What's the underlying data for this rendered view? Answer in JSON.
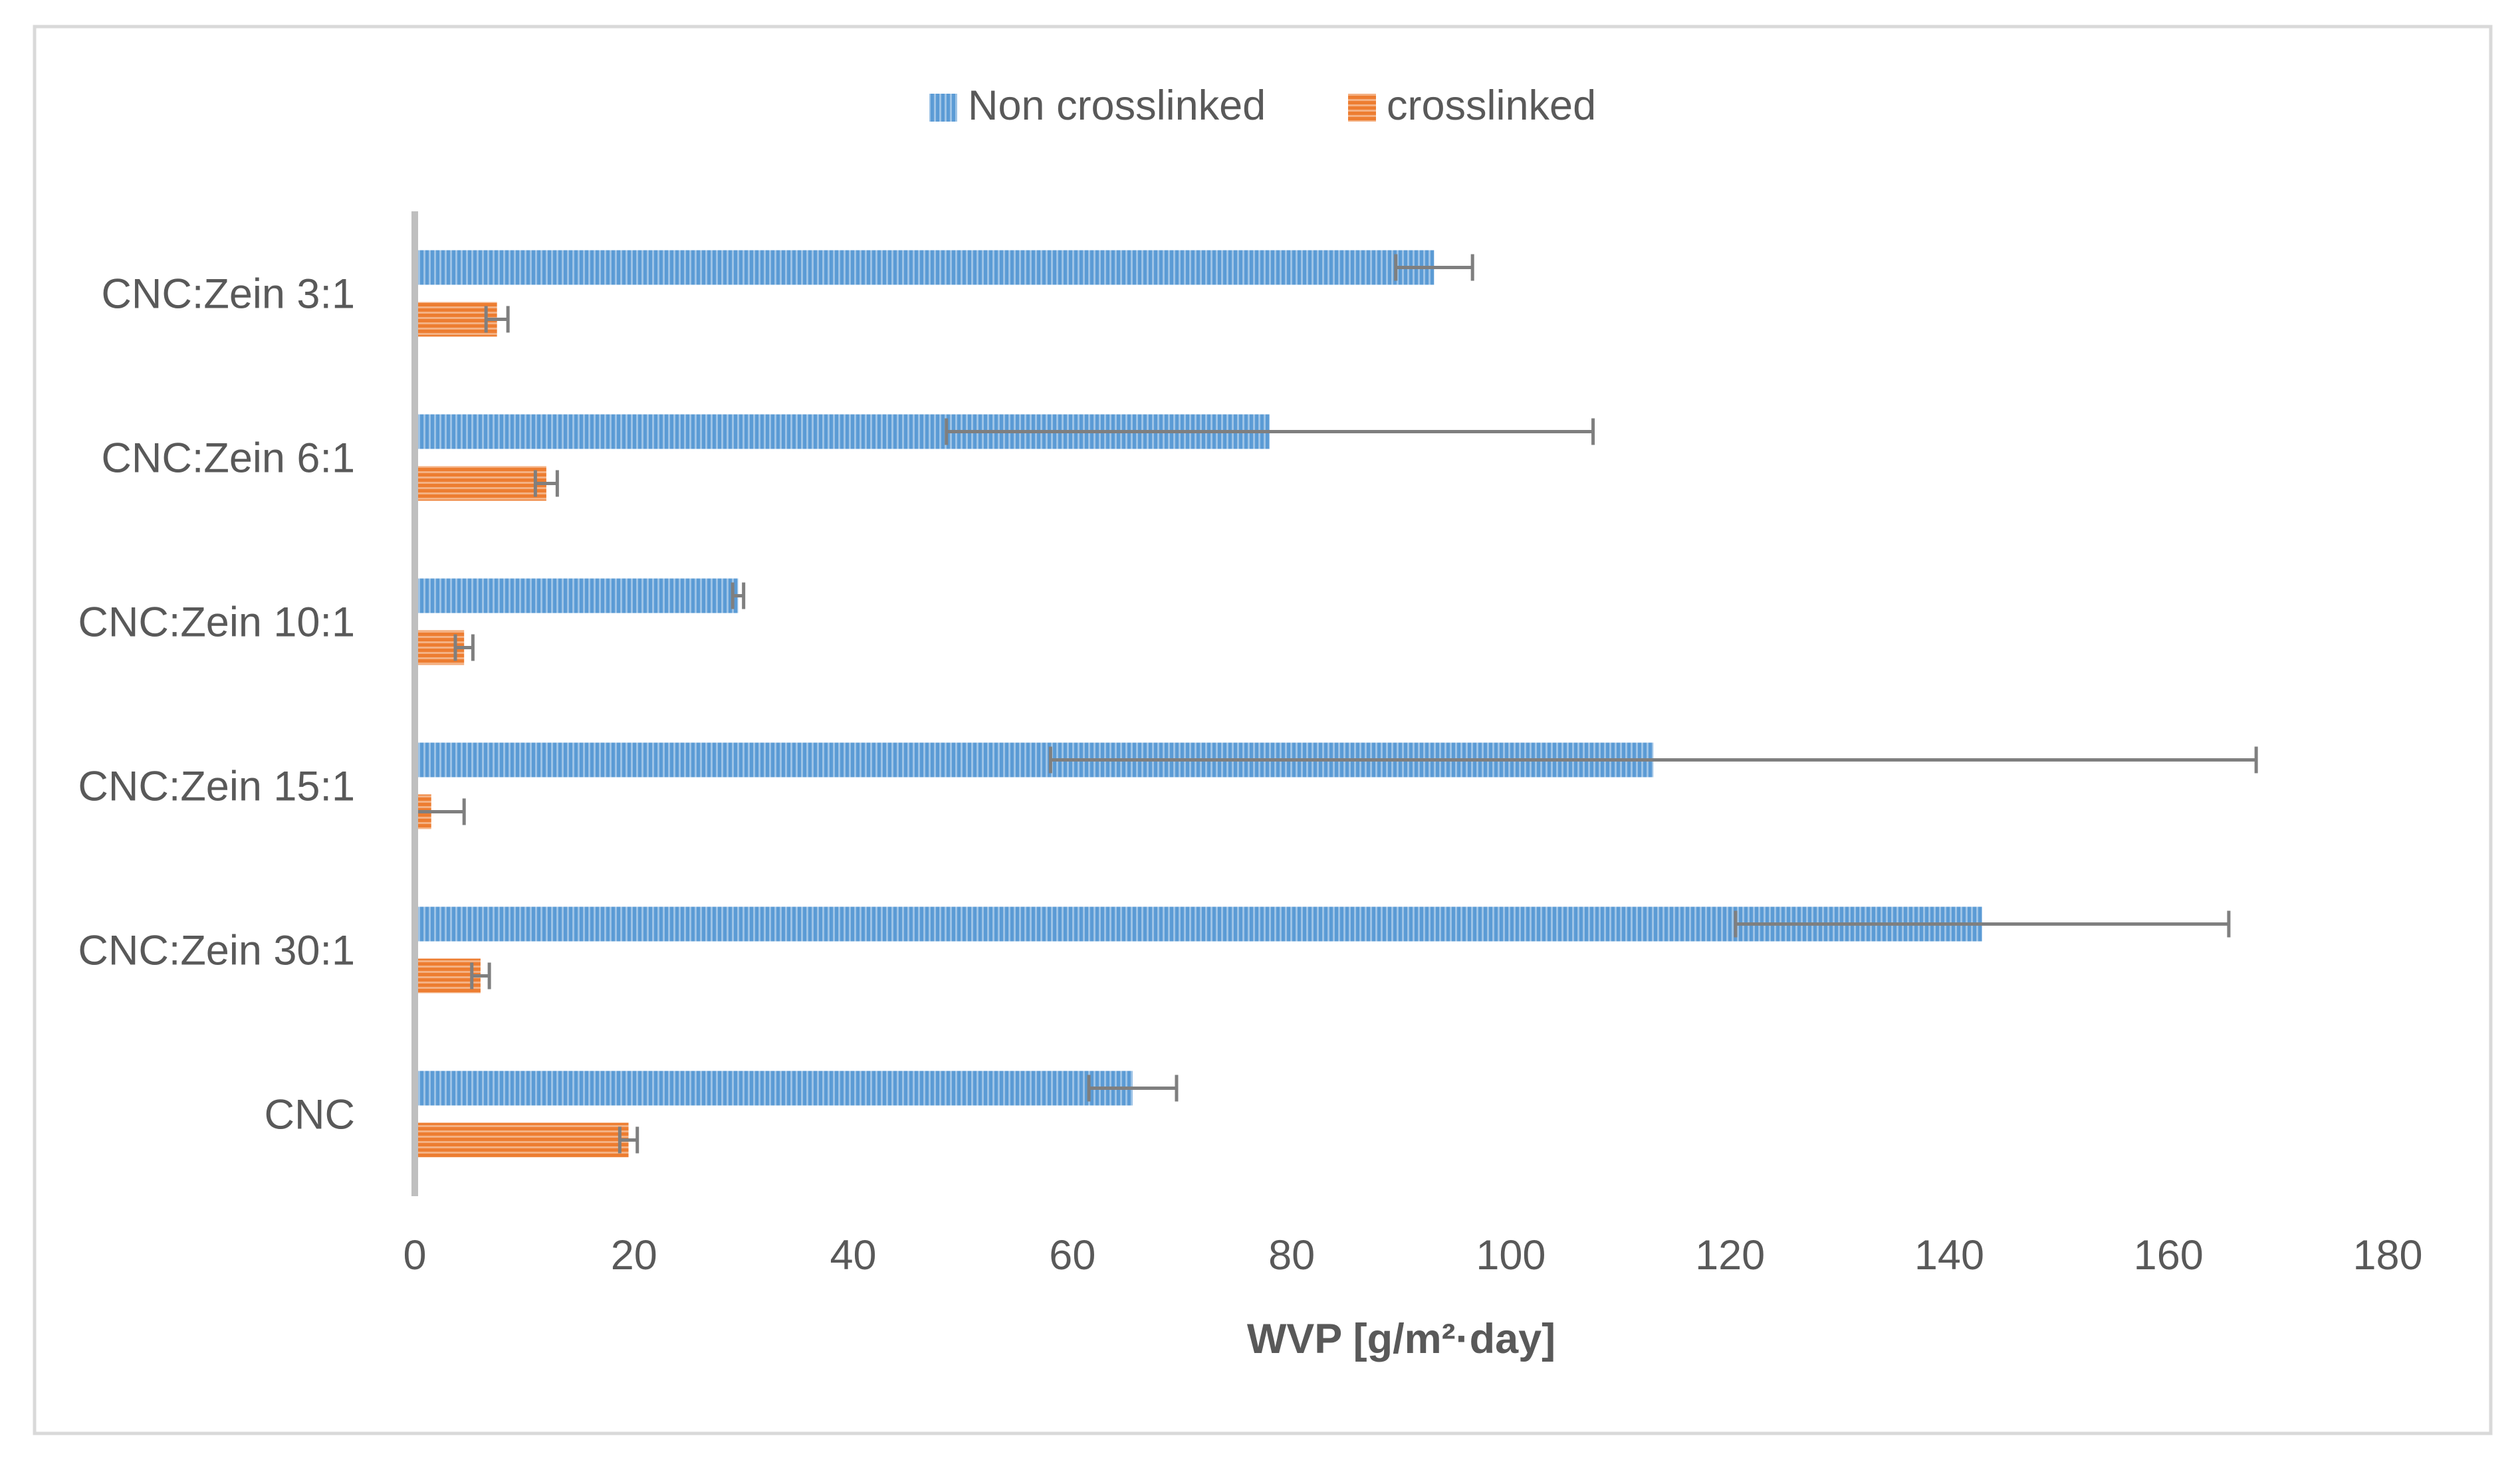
{
  "colors": {
    "non_crosslinked": "#5b9bd5",
    "crosslinked": "#ed7d31",
    "error_bar": "#7f7f7f",
    "axis": "#bfbfbf",
    "frame": "#d9d9d9"
  },
  "chart_data": {
    "type": "bar",
    "orientation": "horizontal",
    "title": "",
    "xlabel": "WVP [g/m²·day]",
    "ylabel": "",
    "xlim": [
      0,
      180
    ],
    "x_ticks": [
      "0",
      "20",
      "40",
      "60",
      "80",
      "100",
      "120",
      "140",
      "160",
      "180"
    ],
    "grid": false,
    "legend_position": "top",
    "categories": [
      "CNC:Zein 3:1",
      "CNC:Zein 6:1",
      "CNC:Zein 10:1",
      "CNC:Zein 15:1",
      "CNC:Zein 30:1",
      "CNC"
    ],
    "series": [
      {
        "name": "Non crosslinked",
        "pattern": "vertical-stripes",
        "values": [
          93,
          78,
          29.5,
          113,
          143,
          65.5
        ],
        "error": [
          3.5,
          29.5,
          0.5,
          55,
          22.5,
          4
        ]
      },
      {
        "name": "crosslinked",
        "pattern": "horizontal-stripes",
        "values": [
          7.5,
          12,
          4.5,
          1.5,
          6,
          19.5
        ],
        "error": [
          1,
          1,
          0.8,
          3,
          0.8,
          0.8
        ]
      }
    ]
  }
}
